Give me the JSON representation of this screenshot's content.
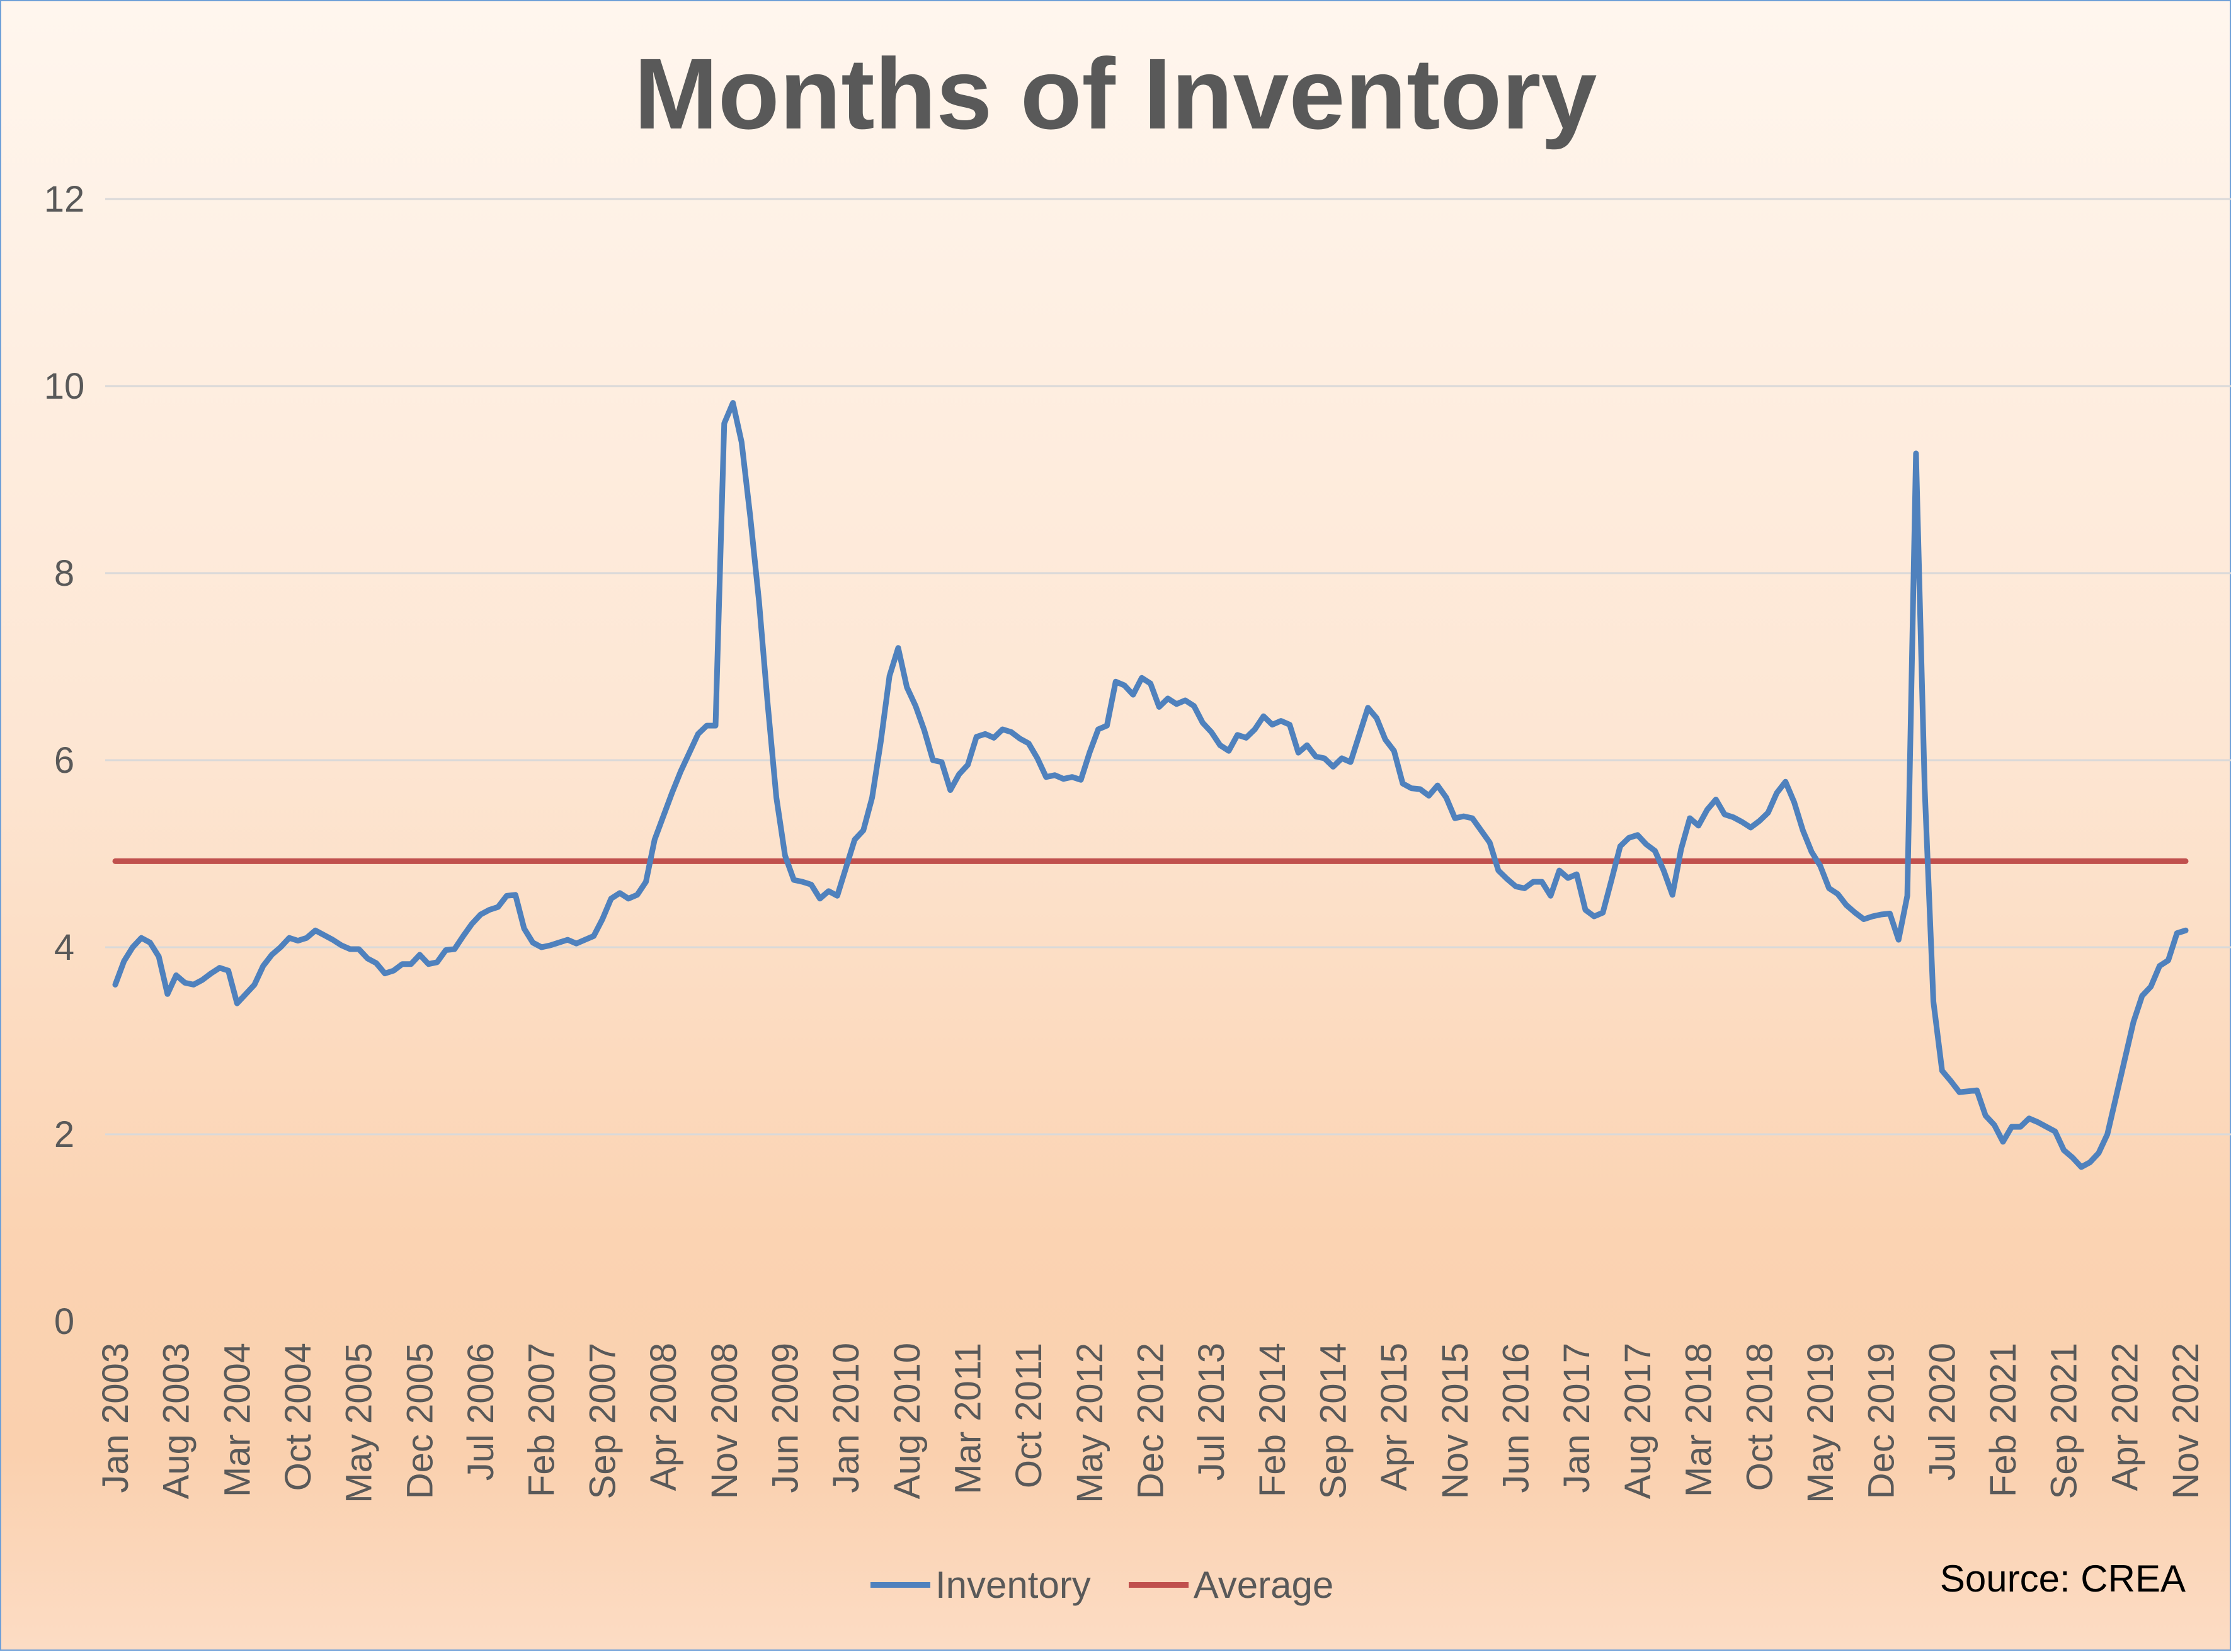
{
  "chart_data": {
    "type": "line",
    "title": "Months of Inventory",
    "source": "Source: CREA",
    "x_range": [
      "Jan 2003",
      "Nov 2022"
    ],
    "frequency": "monthly",
    "x_tick_labels": [
      "Jan 2003",
      "Aug 2003",
      "Mar 2004",
      "Oct 2004",
      "May 2005",
      "Dec 2005",
      "Jul 2006",
      "Feb 2007",
      "Sep 2007",
      "Apr 2008",
      "Nov 2008",
      "Jun 2009",
      "Jan 2010",
      "Aug 2010",
      "Mar 2011",
      "Oct 2011",
      "May 2012",
      "Dec 2012",
      "Jul 2013",
      "Feb 2014",
      "Sep 2014",
      "Apr 2015",
      "Nov 2015",
      "Jun 2016",
      "Jan 2017",
      "Aug 2017",
      "Mar 2018",
      "Oct 2018",
      "May 2019",
      "Dec 2019",
      "Jul 2020",
      "Feb 2021",
      "Sep 2021",
      "Apr 2022",
      "Nov 2022"
    ],
    "x_tick_every_months": 7,
    "y_tick_labels": [
      "0",
      "2",
      "4",
      "6",
      "8",
      "10",
      "12"
    ],
    "ylim": [
      0,
      12
    ],
    "grid": "horizontal",
    "legend_position": "bottom",
    "series": [
      {
        "name": "Inventory",
        "color": "#4f81bd",
        "values": [
          3.6,
          3.85,
          4.0,
          4.1,
          4.05,
          3.9,
          3.5,
          3.7,
          3.62,
          3.6,
          3.65,
          3.72,
          3.78,
          3.75,
          3.4,
          3.5,
          3.6,
          3.8,
          3.92,
          4.0,
          4.1,
          4.07,
          4.1,
          4.18,
          4.13,
          4.08,
          4.02,
          3.98,
          3.98,
          3.88,
          3.83,
          3.72,
          3.75,
          3.82,
          3.82,
          3.92,
          3.82,
          3.84,
          3.97,
          3.98,
          4.12,
          4.25,
          4.35,
          4.4,
          4.43,
          4.55,
          4.56,
          4.2,
          4.05,
          4.0,
          4.02,
          4.05,
          4.08,
          4.04,
          4.08,
          4.12,
          4.3,
          4.52,
          4.58,
          4.52,
          4.56,
          4.7,
          5.15,
          5.4,
          5.65,
          5.88,
          6.08,
          6.28,
          6.37,
          6.37,
          9.6,
          9.82,
          9.4,
          8.6,
          7.7,
          6.6,
          5.6,
          4.98,
          4.72,
          4.7,
          4.67,
          4.52,
          4.6,
          4.55,
          4.85,
          5.15,
          5.25,
          5.6,
          6.2,
          6.9,
          7.2,
          6.78,
          6.58,
          6.32,
          6.0,
          5.98,
          5.68,
          5.85,
          5.95,
          6.25,
          6.28,
          6.24,
          6.33,
          6.3,
          6.23,
          6.18,
          6.02,
          5.82,
          5.84,
          5.8,
          5.82,
          5.79,
          6.08,
          6.33,
          6.37,
          6.84,
          6.8,
          6.7,
          6.88,
          6.82,
          6.57,
          6.66,
          6.6,
          6.64,
          6.58,
          6.4,
          6.3,
          6.16,
          6.1,
          6.27,
          6.24,
          6.33,
          6.47,
          6.38,
          6.42,
          6.38,
          6.08,
          6.16,
          6.04,
          6.02,
          5.93,
          6.02,
          5.98,
          6.27,
          6.56,
          6.45,
          6.22,
          6.1,
          5.75,
          5.7,
          5.69,
          5.62,
          5.73,
          5.6,
          5.38,
          5.4,
          5.38,
          5.25,
          5.12,
          4.82,
          4.73,
          4.65,
          4.63,
          4.7,
          4.7,
          4.55,
          4.82,
          4.74,
          4.78,
          4.4,
          4.33,
          4.37,
          4.72,
          5.08,
          5.17,
          5.2,
          5.1,
          5.03,
          4.82,
          4.56,
          5.05,
          5.38,
          5.3,
          5.47,
          5.58,
          5.42,
          5.39,
          5.34,
          5.28,
          5.35,
          5.44,
          5.65,
          5.77,
          5.55,
          5.25,
          5.02,
          4.87,
          4.63,
          4.57,
          4.45,
          4.37,
          4.3,
          4.33,
          4.35,
          4.36,
          4.08,
          4.55,
          9.28,
          5.7,
          3.42,
          2.68,
          2.57,
          2.45,
          2.46,
          2.47,
          2.2,
          2.1,
          1.92,
          2.08,
          2.08,
          2.17,
          2.13,
          2.08,
          2.03,
          1.83,
          1.75,
          1.65,
          1.7,
          1.8,
          2.0,
          2.4,
          2.8,
          3.2,
          3.48,
          3.58,
          3.8,
          3.86,
          4.15,
          4.18
        ]
      },
      {
        "name": "Average",
        "color": "#c0504d",
        "constant": 4.92
      }
    ]
  }
}
